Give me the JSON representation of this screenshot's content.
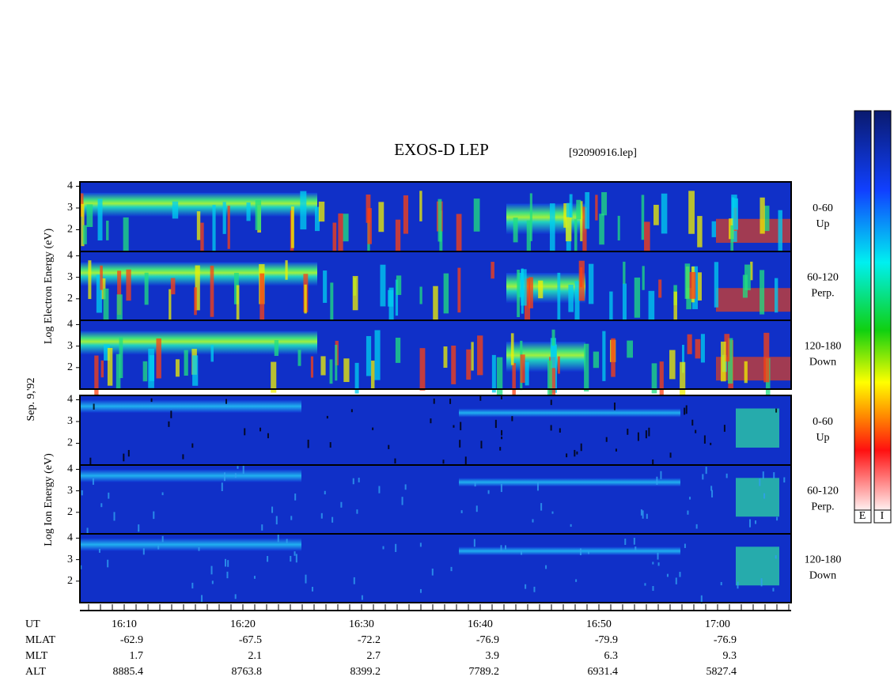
{
  "title": "EXOS-D LEP",
  "file": "[92090916.lep]",
  "date": "Sep. 9,'92",
  "electron_axis_label": "Log  Electron  Energy (eV)",
  "ion_axis_label": "Log  Ion  Energy (eV)",
  "ylim": [
    1,
    4.2
  ],
  "yticks": [
    2,
    3,
    4
  ],
  "panels": [
    {
      "species": "electron",
      "angle": "0-60",
      "direction": "Up"
    },
    {
      "species": "electron",
      "angle": "60-120",
      "direction": "Perp."
    },
    {
      "species": "electron",
      "angle": "120-180",
      "direction": "Down"
    },
    {
      "species": "ion",
      "angle": "0-60",
      "direction": "Up"
    },
    {
      "species": "ion",
      "angle": "60-120",
      "direction": "Perp."
    },
    {
      "species": "ion",
      "angle": "120-180",
      "direction": "Down"
    }
  ],
  "orbit": [
    {
      "name": "UT",
      "values": [
        "16:10",
        "16:20",
        "16:30",
        "16:40",
        "16:50",
        "17:00"
      ]
    },
    {
      "name": "MLAT",
      "values": [
        "-62.9",
        "-67.5",
        "-72.2",
        "-76.9",
        "-79.9",
        "-76.9"
      ]
    },
    {
      "name": "MLT",
      "values": [
        "1.7",
        "2.1",
        "2.7",
        "3.9",
        "6.3",
        "9.3"
      ]
    },
    {
      "name": "ALT",
      "values": [
        "8885.4",
        "8763.8",
        "8399.2",
        "7789.2",
        "6931.4",
        "5827.4"
      ]
    }
  ],
  "colorbar_labels": [
    "E",
    "I"
  ]
}
